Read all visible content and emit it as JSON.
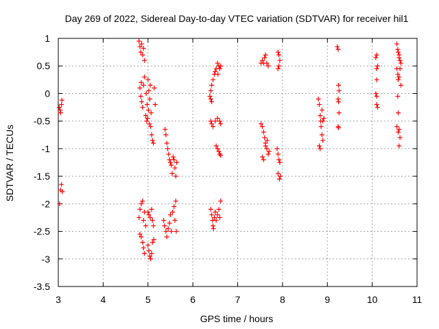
{
  "chart_data": {
    "type": "scatter",
    "title": "Day 269 of 2022, Sidereal Day-to-day VTEC variation (SDTVAR) for receiver hil1",
    "xlabel": "GPS time / hours",
    "ylabel": "SDTVAR / TECUs",
    "xlim": [
      3,
      11
    ],
    "ylim": [
      -3.5,
      1
    ],
    "grid": true,
    "marker": "+",
    "color": "#ff0000",
    "x_ticks": [
      "3",
      "4",
      "5",
      "6",
      "7",
      "8",
      "9",
      "10",
      "11"
    ],
    "y_ticks": [
      "1",
      "0.5",
      "0",
      "-0.5",
      "-1",
      "-1.5",
      "-2",
      "-2.5",
      "-3",
      "-3.5"
    ],
    "series": [
      {
        "name": "SDTVAR",
        "points": [
          [
            3.02,
            -0.25
          ],
          [
            3.04,
            -0.3
          ],
          [
            3.05,
            -0.35
          ],
          [
            3.07,
            -0.2
          ],
          [
            3.08,
            -0.12
          ],
          [
            3.03,
            -2.0
          ],
          [
            3.05,
            -1.75
          ],
          [
            3.07,
            -1.65
          ],
          [
            3.09,
            -1.78
          ],
          [
            4.8,
            0.95
          ],
          [
            4.82,
            0.85
          ],
          [
            4.84,
            0.75
          ],
          [
            4.86,
            0.9
          ],
          [
            4.88,
            0.7
          ],
          [
            4.9,
            0.82
          ],
          [
            4.92,
            0.6
          ],
          [
            4.82,
            0.1
          ],
          [
            4.84,
            -0.05
          ],
          [
            4.86,
            -0.15
          ],
          [
            4.88,
            -0.25
          ],
          [
            4.9,
            0.15
          ],
          [
            4.92,
            0.3
          ],
          [
            4.85,
            0.2
          ],
          [
            4.95,
            -0.4
          ],
          [
            4.97,
            -0.5
          ],
          [
            4.99,
            -0.45
          ],
          [
            5.01,
            -0.3
          ],
          [
            5.03,
            -0.55
          ],
          [
            5.0,
            0.25
          ],
          [
            5.02,
            0.05
          ],
          [
            5.04,
            -0.1
          ],
          [
            5.06,
            -0.6
          ],
          [
            5.08,
            -0.75
          ],
          [
            5.1,
            -0.85
          ],
          [
            5.12,
            -0.9
          ],
          [
            5.14,
            0.1
          ],
          [
            5.16,
            -0.2
          ],
          [
            4.96,
            0.0
          ],
          [
            4.98,
            -0.2
          ],
          [
            5.05,
            0.15
          ],
          [
            5.07,
            -0.35
          ],
          [
            4.8,
            -2.25
          ],
          [
            4.82,
            -2.1
          ],
          [
            4.85,
            -2.0
          ],
          [
            4.88,
            -1.95
          ],
          [
            4.9,
            -2.3
          ],
          [
            4.92,
            -2.15
          ],
          [
            4.95,
            -2.4
          ],
          [
            4.82,
            -2.55
          ],
          [
            4.85,
            -2.6
          ],
          [
            4.88,
            -2.7
          ],
          [
            4.9,
            -2.8
          ],
          [
            4.92,
            -2.9
          ],
          [
            5.0,
            -2.15
          ],
          [
            5.02,
            -2.2
          ],
          [
            5.05,
            -2.25
          ],
          [
            5.08,
            -2.1
          ],
          [
            5.1,
            -2.3
          ],
          [
            5.12,
            -2.4
          ],
          [
            5.0,
            -2.75
          ],
          [
            5.02,
            -2.85
          ],
          [
            5.04,
            -2.95
          ],
          [
            5.06,
            -3.0
          ],
          [
            5.08,
            -2.9
          ],
          [
            5.1,
            -2.7
          ],
          [
            5.13,
            -2.65
          ],
          [
            5.38,
            -0.65
          ],
          [
            5.4,
            -0.75
          ],
          [
            5.42,
            -0.9
          ],
          [
            5.44,
            -1.0
          ],
          [
            5.46,
            -1.1
          ],
          [
            5.48,
            -1.2
          ],
          [
            5.5,
            -1.25
          ],
          [
            5.52,
            -1.3
          ],
          [
            5.54,
            -1.45
          ],
          [
            5.56,
            -1.15
          ],
          [
            5.58,
            -1.2
          ],
          [
            5.6,
            -1.35
          ],
          [
            5.62,
            -1.5
          ],
          [
            5.64,
            -1.25
          ],
          [
            5.35,
            -2.3
          ],
          [
            5.37,
            -2.4
          ],
          [
            5.4,
            -2.5
          ],
          [
            5.42,
            -2.6
          ],
          [
            5.45,
            -2.45
          ],
          [
            5.48,
            -2.35
          ],
          [
            5.5,
            -2.2
          ],
          [
            5.52,
            -2.5
          ],
          [
            5.55,
            -2.15
          ],
          [
            5.58,
            -2.05
          ],
          [
            5.6,
            -2.3
          ],
          [
            5.62,
            -1.95
          ],
          [
            5.63,
            -2.5
          ],
          [
            6.38,
            -0.05
          ],
          [
            6.4,
            -0.1
          ],
          [
            6.42,
            -0.15
          ],
          [
            6.4,
            0.05
          ],
          [
            6.42,
            0.15
          ],
          [
            6.45,
            0.25
          ],
          [
            6.48,
            0.35
          ],
          [
            6.5,
            0.4
          ],
          [
            6.52,
            0.45
          ],
          [
            6.55,
            0.55
          ],
          [
            6.58,
            0.5
          ],
          [
            6.6,
            0.45
          ],
          [
            6.62,
            0.5
          ],
          [
            6.56,
            0.35
          ],
          [
            6.4,
            -0.5
          ],
          [
            6.42,
            -0.55
          ],
          [
            6.45,
            -0.6
          ],
          [
            6.5,
            -0.5
          ],
          [
            6.55,
            -0.45
          ],
          [
            6.6,
            -0.5
          ],
          [
            6.62,
            -0.55
          ],
          [
            6.52,
            -0.95
          ],
          [
            6.55,
            -1.0
          ],
          [
            6.58,
            -1.05
          ],
          [
            6.6,
            -1.1
          ],
          [
            6.62,
            -1.12
          ],
          [
            6.4,
            -2.1
          ],
          [
            6.42,
            -2.2
          ],
          [
            6.44,
            -2.3
          ],
          [
            6.45,
            -2.4
          ],
          [
            6.48,
            -2.25
          ],
          [
            6.5,
            -2.15
          ],
          [
            6.52,
            -2.3
          ],
          [
            6.55,
            -2.2
          ],
          [
            6.58,
            -2.1
          ],
          [
            6.6,
            -2.25
          ],
          [
            6.62,
            -1.95
          ],
          [
            6.46,
            -2.45
          ],
          [
            7.52,
            0.55
          ],
          [
            7.55,
            0.6
          ],
          [
            7.58,
            0.55
          ],
          [
            7.6,
            0.65
          ],
          [
            7.62,
            0.7
          ],
          [
            7.65,
            0.55
          ],
          [
            7.68,
            0.5
          ],
          [
            7.52,
            -0.55
          ],
          [
            7.55,
            -0.6
          ],
          [
            7.58,
            -0.7
          ],
          [
            7.6,
            -0.8
          ],
          [
            7.62,
            -0.9
          ],
          [
            7.65,
            -1.0
          ],
          [
            7.68,
            -1.1
          ],
          [
            7.55,
            -1.15
          ],
          [
            7.58,
            -1.2
          ],
          [
            7.62,
            -0.95
          ],
          [
            7.66,
            -0.85
          ],
          [
            7.7,
            -1.05
          ],
          [
            7.9,
            0.75
          ],
          [
            7.92,
            0.7
          ],
          [
            7.94,
            0.6
          ],
          [
            7.92,
            0.5
          ],
          [
            7.9,
            0.45
          ],
          [
            7.88,
            -1.0
          ],
          [
            7.9,
            -1.1
          ],
          [
            7.92,
            -1.2
          ],
          [
            7.94,
            -1.25
          ],
          [
            7.9,
            -1.45
          ],
          [
            7.93,
            -1.55
          ],
          [
            7.95,
            -1.5
          ],
          [
            8.8,
            -0.1
          ],
          [
            8.82,
            -0.2
          ],
          [
            8.84,
            -0.4
          ],
          [
            8.85,
            -0.5
          ],
          [
            8.86,
            -0.6
          ],
          [
            8.88,
            -0.75
          ],
          [
            8.9,
            -0.85
          ],
          [
            8.82,
            -0.95
          ],
          [
            8.84,
            -1.0
          ],
          [
            8.9,
            -0.5
          ],
          [
            8.92,
            -0.45
          ],
          [
            8.88,
            -0.3
          ],
          [
            9.22,
            0.85
          ],
          [
            9.24,
            0.8
          ],
          [
            9.25,
            0.15
          ],
          [
            9.26,
            0.05
          ],
          [
            9.24,
            -0.1
          ],
          [
            9.25,
            -0.15
          ],
          [
            9.26,
            -0.35
          ],
          [
            9.24,
            -0.6
          ],
          [
            9.25,
            -0.62
          ],
          [
            10.08,
            0.65
          ],
          [
            10.1,
            0.7
          ],
          [
            10.1,
            0.45
          ],
          [
            10.12,
            0.5
          ],
          [
            10.1,
            0.25
          ],
          [
            10.08,
            0.0
          ],
          [
            10.1,
            -0.05
          ],
          [
            10.1,
            -0.2
          ],
          [
            10.12,
            -0.25
          ],
          [
            10.55,
            0.9
          ],
          [
            10.57,
            0.8
          ],
          [
            10.58,
            0.75
          ],
          [
            10.6,
            0.7
          ],
          [
            10.62,
            0.6
          ],
          [
            10.64,
            0.55
          ],
          [
            10.55,
            0.45
          ],
          [
            10.57,
            0.35
          ],
          [
            10.58,
            0.25
          ],
          [
            10.6,
            0.3
          ],
          [
            10.62,
            0.45
          ],
          [
            10.64,
            0.15
          ],
          [
            10.6,
            0.65
          ],
          [
            10.58,
            -0.35
          ],
          [
            10.55,
            -0.6
          ],
          [
            10.58,
            -0.7
          ],
          [
            10.6,
            -0.65
          ],
          [
            10.62,
            -0.8
          ],
          [
            10.6,
            -0.95
          ],
          [
            10.57,
            -0.05
          ]
        ]
      }
    ]
  }
}
